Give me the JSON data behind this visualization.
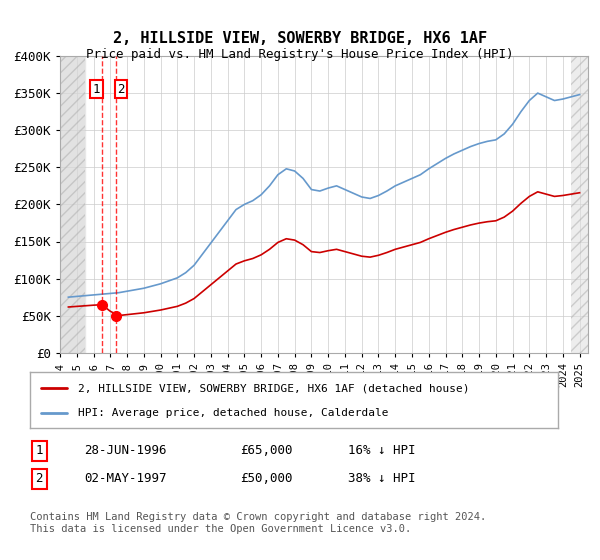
{
  "title": "2, HILLSIDE VIEW, SOWERBY BRIDGE, HX6 1AF",
  "subtitle": "Price paid vs. HM Land Registry's House Price Index (HPI)",
  "ylabel_values": [
    "£0",
    "£50K",
    "£100K",
    "£150K",
    "£200K",
    "£250K",
    "£300K",
    "£350K",
    "£400K"
  ],
  "ylim": [
    0,
    400000
  ],
  "xlim_start": 1994.0,
  "xlim_end": 2025.5,
  "sale1_date": 1996.49,
  "sale1_price": 65000,
  "sale2_date": 1997.33,
  "sale2_price": 50000,
  "legend_red": "2, HILLSIDE VIEW, SOWERBY BRIDGE, HX6 1AF (detached house)",
  "legend_blue": "HPI: Average price, detached house, Calderdale",
  "table_row1": "28-JUN-1996    £65,000    16% ↓ HPI",
  "table_row2": "02-MAY-1997    £50,000    38% ↓ HPI",
  "footer": "Contains HM Land Registry data © Crown copyright and database right 2024.\nThis data is licensed under the Open Government Licence v3.0.",
  "bg_color": "#ffffff",
  "hatch_color": "#cccccc",
  "grid_color": "#cccccc"
}
